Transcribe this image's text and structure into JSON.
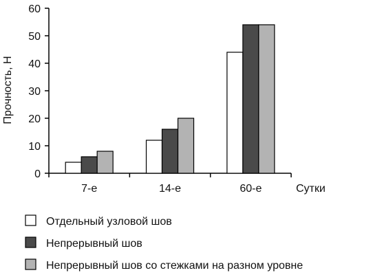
{
  "chart_data": {
    "type": "bar",
    "categories": [
      "7-е",
      "14-е",
      "60-е"
    ],
    "series": [
      {
        "name": "Отдельный узловой шов",
        "values": [
          4,
          12,
          44
        ],
        "color": "#ffffff"
      },
      {
        "name": "Непрерывный шов",
        "values": [
          6,
          16,
          54
        ],
        "color": "#4a4a4a"
      },
      {
        "name": "Непрерывный шов со стежками на разном уровне",
        "values": [
          8,
          20,
          54
        ],
        "color": "#b3b3b3"
      }
    ],
    "ylabel": "Прочность, Н",
    "xlabel": "Сутки",
    "ylim": [
      0,
      60
    ],
    "yticks": [
      0,
      10,
      20,
      30,
      40,
      50,
      60
    ],
    "grid": false,
    "legend_position": "bottom"
  }
}
